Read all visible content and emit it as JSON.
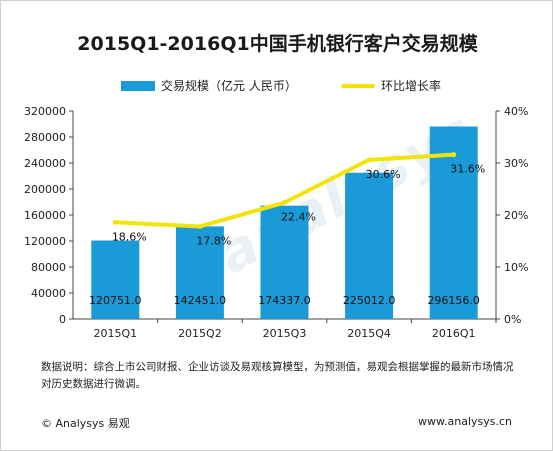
{
  "title": "2015Q1-2016Q1中国手机银行客户交易规模",
  "legend": {
    "bar_label": "交易规模（亿元 人民币）",
    "line_label": "环比增长率"
  },
  "colors": {
    "bar": "#1a9ad7",
    "line": "#f2e40b"
  },
  "chart_data": {
    "type": "bar",
    "title": "2015Q1-2016Q1中国手机银行客户交易规模",
    "categories": [
      "2015Q1",
      "2015Q2",
      "2015Q3",
      "2015Q4",
      "2016Q1"
    ],
    "series": [
      {
        "name": "交易规模（亿元 人民币）",
        "type": "bar",
        "axis": "left",
        "values": [
          120751.0,
          142451.0,
          174337.0,
          225012.0,
          296156.0
        ],
        "labels": [
          "120751.0",
          "142451.0",
          "174337.0",
          "225012.0",
          "296156.0"
        ]
      },
      {
        "name": "环比增长率",
        "type": "line",
        "axis": "right",
        "values": [
          18.6,
          17.8,
          22.4,
          30.6,
          31.6
        ],
        "labels": [
          "18.6%",
          "17.8%",
          "22.4%",
          "30.6%",
          "31.6%"
        ]
      }
    ],
    "y_left": {
      "ylim": [
        0,
        320000
      ],
      "ticks": [
        "0",
        "40000",
        "80000",
        "120000",
        "160000",
        "200000",
        "240000",
        "280000",
        "320000"
      ]
    },
    "y_right": {
      "ylim": [
        0,
        40
      ],
      "ticks": [
        "0%",
        "10%",
        "20%",
        "30%",
        "40%"
      ]
    },
    "grid": false,
    "legend_position": "top"
  },
  "footnote": "数据说明：综合上市公司财报、企业访谈及易观核算模型，为预测值，易观会根据掌握的最新市场情况对历史数据进行微调。",
  "footer": {
    "left": "© Analysys 易观",
    "right": "www.analysys.cn"
  },
  "watermark": "analysys"
}
